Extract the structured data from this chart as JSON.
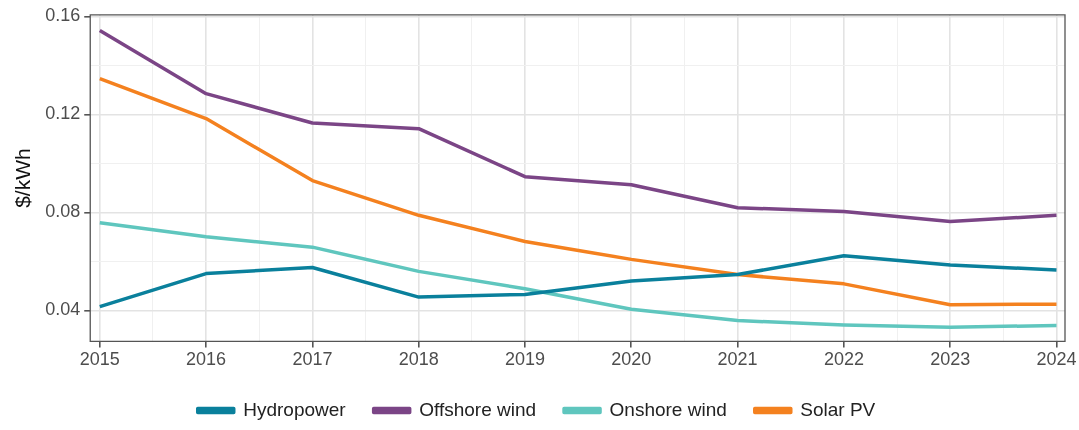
{
  "chart_data": {
    "type": "line",
    "ylabel": "$/kWh",
    "x": [
      2015,
      2016,
      2017,
      2018,
      2019,
      2020,
      2021,
      2022,
      2023,
      2024
    ],
    "xlim": [
      2014.91,
      2024.08
    ],
    "xticks": [
      2015,
      {
        "value": 2015.5,
        "label": null
      },
      2016,
      {
        "value": 2016.5,
        "label": null
      },
      2017,
      {
        "value": 2017.5,
        "label": null
      },
      2018,
      {
        "value": 2018.5,
        "label": null
      },
      2019,
      {
        "value": 2019.5,
        "label": null
      },
      2020,
      {
        "value": 2020.5,
        "label": null
      },
      2021,
      {
        "value": 2021.5,
        "label": null
      },
      2022,
      {
        "value": 2022.5,
        "label": null
      },
      2023,
      {
        "value": 2023.5,
        "label": null
      },
      2024
    ],
    "ylim": [
      0.0273,
      0.1607
    ],
    "yticks": [
      {
        "value": 0.04,
        "label": "0.04"
      },
      {
        "value": 0.06,
        "label": null
      },
      {
        "value": 0.08,
        "label": "0.08"
      },
      {
        "value": 0.1,
        "label": null
      },
      {
        "value": 0.12,
        "label": "0.12"
      },
      {
        "value": 0.14,
        "label": null
      },
      {
        "value": 0.16,
        "label": "0.16"
      }
    ],
    "grid": true,
    "legend": "bottom",
    "marker": "none",
    "line_style": "solid",
    "series": [
      {
        "name": "Hydropower",
        "color": "#0a809c",
        "values": [
          0.0415,
          0.055,
          0.0575,
          0.0454,
          0.0465,
          0.052,
          0.0546,
          0.0623,
          0.0585,
          0.0565
        ]
      },
      {
        "name": "Offshore wind",
        "color": "#7b4586",
        "values": [
          0.1543,
          0.1285,
          0.1165,
          0.1142,
          0.0946,
          0.0913,
          0.0819,
          0.0804,
          0.0763,
          0.0788
        ]
      },
      {
        "name": "Onshore wind",
        "color": "#5fc6be",
        "values": [
          0.0758,
          0.07,
          0.0658,
          0.0559,
          0.0488,
          0.0404,
          0.0358,
          0.034,
          0.0331,
          0.0338
        ]
      },
      {
        "name": "Solar PV",
        "color": "#f4811f",
        "values": [
          0.1346,
          0.1183,
          0.093,
          0.0788,
          0.0681,
          0.0608,
          0.0546,
          0.0508,
          0.0423,
          0.0425
        ]
      }
    ]
  }
}
